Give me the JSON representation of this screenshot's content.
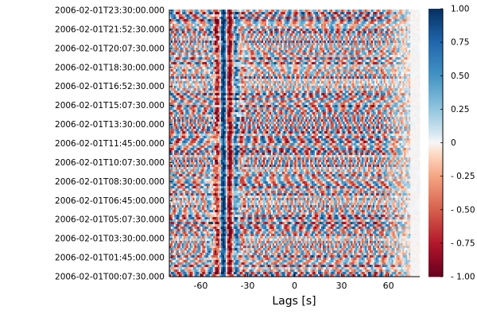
{
  "chart_data": {
    "type": "heatmap",
    "title": "",
    "xlabel": "Lags [s]",
    "ylabel": "",
    "xlim": [
      -80,
      80
    ],
    "x_ticks": [
      -60,
      -30,
      0,
      30,
      60
    ],
    "x_tick_labels": [
      "-60",
      "-30",
      "0",
      "30",
      "60"
    ],
    "y_tick_labels": [
      "2006-02-01T00:07:30.000",
      "2006-02-01T01:45:00.000",
      "2006-02-01T03:30:00.000",
      "2006-02-01T05:07:30.000",
      "2006-02-01T06:45:00.000",
      "2006-02-01T08:30:00.000",
      "2006-02-01T10:07:30.000",
      "2006-02-01T11:45:00.000",
      "2006-02-01T13:30:00.000",
      "2006-02-01T15:07:30.000",
      "2006-02-01T16:52:30.000",
      "2006-02-01T18:30:00.000",
      "2006-02-01T20:07:30.000",
      "2006-02-01T21:52:30.000",
      "2006-02-01T23:30:00.000"
    ],
    "colorbar": {
      "range": [
        -1.0,
        1.0
      ],
      "ticks": [
        -1.0,
        -0.75,
        -0.5,
        -0.25,
        0,
        0.25,
        0.5,
        0.75,
        1.0
      ],
      "tick_labels": [
        "- 1.00",
        "- 0.75",
        "- 0.50",
        "- 0.25",
        "0",
        "0.25",
        "0.50",
        "0.75",
        "1.00"
      ],
      "colormap": "RdBu"
    },
    "grid": false,
    "legend": "none"
  }
}
